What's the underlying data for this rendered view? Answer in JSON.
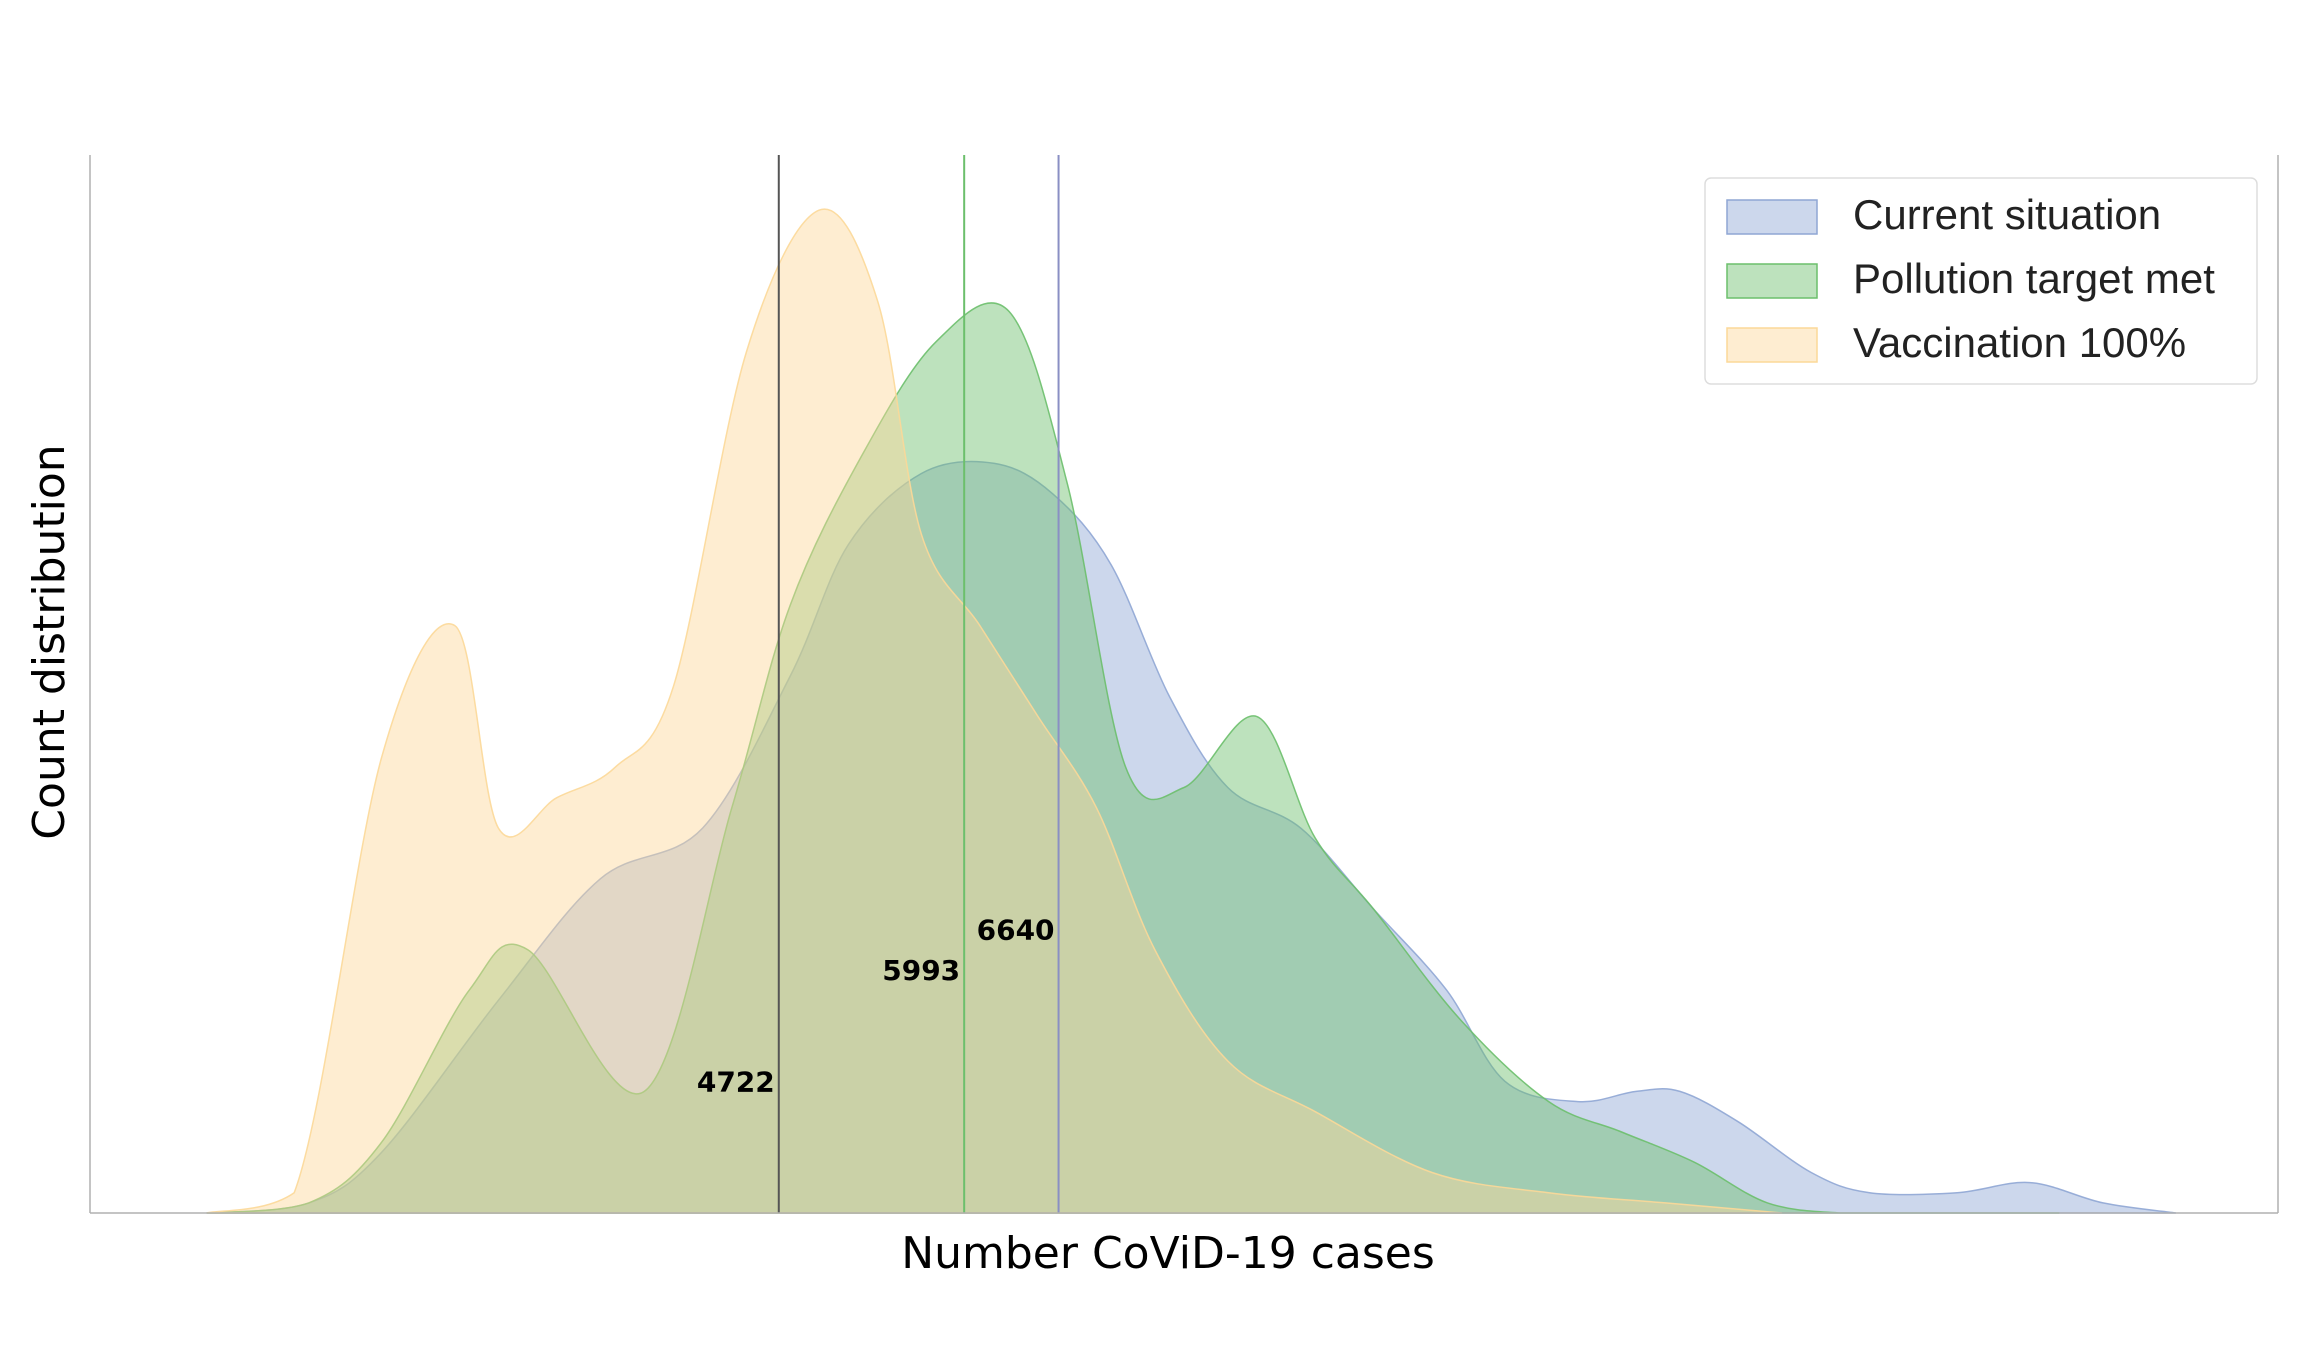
{
  "chart_data": {
    "type": "area",
    "title": "",
    "xlabel": "Number CoViD-19 cases",
    "ylabel": "Count distribution",
    "xlim": [
      0,
      15000
    ],
    "ylim": [
      0,
      1.0
    ],
    "grid": false,
    "legend_position": "top-right",
    "series": [
      {
        "name": "Current situation",
        "color": "#8fa6d4",
        "x": [
          800,
          1500,
          2000,
          2800,
          3500,
          4200,
          4800,
          5200,
          5700,
          6200,
          6600,
          7000,
          7400,
          7800,
          8300,
          8800,
          9300,
          9700,
          10200,
          10600,
          10900,
          11300,
          11800,
          12200,
          12800,
          13300,
          13800,
          14300
        ],
        "y": [
          0.0,
          0.01,
          0.06,
          0.21,
          0.33,
          0.38,
          0.53,
          0.66,
          0.73,
          0.74,
          0.71,
          0.64,
          0.51,
          0.42,
          0.38,
          0.3,
          0.22,
          0.13,
          0.11,
          0.12,
          0.12,
          0.09,
          0.04,
          0.02,
          0.02,
          0.03,
          0.01,
          0.0
        ]
      },
      {
        "name": "Pollution target met",
        "color": "#6cbf6c",
        "x": [
          800,
          1500,
          2000,
          2600,
          3000,
          3800,
          4400,
          4800,
          5300,
          5800,
          6300,
          6700,
          7100,
          7500,
          8000,
          8400,
          8800,
          9400,
          10000,
          10500,
          11000,
          11500,
          12000,
          12500,
          13500
        ],
        "y": [
          0.0,
          0.01,
          0.07,
          0.22,
          0.26,
          0.12,
          0.4,
          0.6,
          0.75,
          0.86,
          0.89,
          0.72,
          0.44,
          0.42,
          0.49,
          0.37,
          0.3,
          0.19,
          0.11,
          0.08,
          0.05,
          0.01,
          0.0,
          0.0,
          0.0
        ]
      },
      {
        "name": "Vaccination 100%",
        "color": "#fcd898",
        "x": [
          800,
          1400,
          2000,
          2500,
          2800,
          3200,
          3600,
          4000,
          4500,
          5000,
          5400,
          5700,
          6100,
          6500,
          6900,
          7300,
          7800,
          8400,
          9200,
          10000,
          10800,
          11600
        ],
        "y": [
          0.0,
          0.02,
          0.45,
          0.58,
          0.38,
          0.41,
          0.44,
          0.52,
          0.85,
          0.99,
          0.9,
          0.67,
          0.58,
          0.49,
          0.4,
          0.26,
          0.15,
          0.1,
          0.04,
          0.02,
          0.01,
          0.0
        ]
      }
    ],
    "markers": [
      {
        "value": 4722,
        "label": "4722",
        "color": "#555555",
        "label_height": 0.12
      },
      {
        "value": 5993,
        "label": "5993",
        "color": "#6cbf6c",
        "label_height": 0.23
      },
      {
        "value": 6640,
        "label": "6640",
        "color": "#8a8fc4",
        "label_height": 0.27
      }
    ]
  }
}
